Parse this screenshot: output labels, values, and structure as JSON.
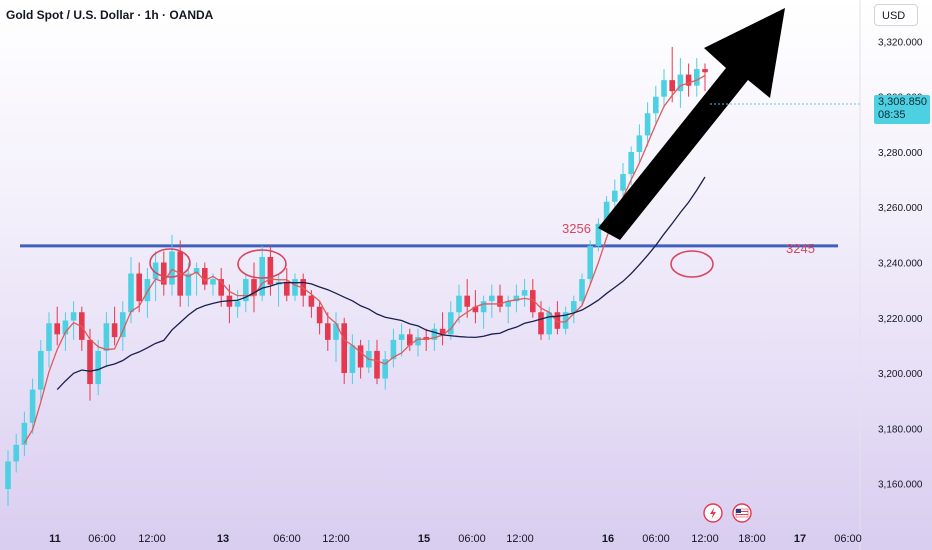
{
  "header": {
    "title": "Gold Spot / U.S. Dollar · 1h · OANDA",
    "currency": "USD"
  },
  "price_tag": {
    "price": "3,308.850",
    "countdown": "08:35"
  },
  "annotations": {
    "level_right": "3245",
    "level_left": "3256"
  },
  "colors": {
    "up": "#4dd0e1",
    "down": "#e53950",
    "level_line": "#3f5fbf",
    "ma_fast": "#e05a5a",
    "ma_slow": "#1a1f4d",
    "arrow": "#000000",
    "circle": "#d9455f"
  },
  "chart_data": {
    "type": "candlestick",
    "title": "Gold Spot / U.S. Dollar · 1h · OANDA",
    "currency": "USD",
    "ylim": [
      3145,
      3335
    ],
    "y_ticks": [
      3160,
      3180,
      3200,
      3220,
      3240,
      3260,
      3280,
      3300,
      3320
    ],
    "y_tick_labels": [
      "3,160.000",
      "3,180.000",
      "3,200.000",
      "3,220.000",
      "3,240.000",
      "3,260.000",
      "3,280.000",
      "3,300.000",
      "3,320.000"
    ],
    "x_tick_labels": [
      "11",
      "06:00",
      "12:00",
      "13",
      "06:00",
      "12:00",
      "15",
      "06:00",
      "12:00",
      "16",
      "06:00",
      "12:00",
      "18:00",
      "17",
      "06:00"
    ],
    "horizontal_level": 3246,
    "last_price": 3308.85,
    "candles": [
      [
        3158,
        3172,
        3152,
        3168
      ],
      [
        3168,
        3178,
        3164,
        3174
      ],
      [
        3174,
        3186,
        3170,
        3182
      ],
      [
        3182,
        3198,
        3178,
        3194
      ],
      [
        3194,
        3212,
        3190,
        3208
      ],
      [
        3208,
        3222,
        3202,
        3218
      ],
      [
        3218,
        3224,
        3210,
        3214
      ],
      [
        3214,
        3222,
        3208,
        3219
      ],
      [
        3219,
        3226,
        3212,
        3222
      ],
      [
        3222,
        3224,
        3208,
        3212
      ],
      [
        3212,
        3216,
        3190,
        3196
      ],
      [
        3196,
        3212,
        3192,
        3208
      ],
      [
        3208,
        3222,
        3202,
        3218
      ],
      [
        3218,
        3224,
        3210,
        3213
      ],
      [
        3213,
        3226,
        3208,
        3222
      ],
      [
        3222,
        3242,
        3218,
        3236
      ],
      [
        3236,
        3240,
        3222,
        3226
      ],
      [
        3226,
        3238,
        3220,
        3234
      ],
      [
        3234,
        3244,
        3226,
        3240
      ],
      [
        3240,
        3244,
        3228,
        3232
      ],
      [
        3232,
        3250,
        3228,
        3244
      ],
      [
        3244,
        3248,
        3224,
        3228
      ],
      [
        3228,
        3240,
        3224,
        3236
      ],
      [
        3236,
        3240,
        3228,
        3238
      ],
      [
        3238,
        3240,
        3230,
        3232
      ],
      [
        3232,
        3236,
        3228,
        3234
      ],
      [
        3234,
        3238,
        3224,
        3228
      ],
      [
        3228,
        3232,
        3218,
        3224
      ],
      [
        3224,
        3230,
        3220,
        3226
      ],
      [
        3226,
        3236,
        3222,
        3234
      ],
      [
        3234,
        3240,
        3222,
        3228
      ],
      [
        3228,
        3246,
        3226,
        3242
      ],
      [
        3242,
        3246,
        3228,
        3232
      ],
      [
        3232,
        3236,
        3224,
        3233
      ],
      [
        3233,
        3238,
        3226,
        3228
      ],
      [
        3228,
        3236,
        3226,
        3234
      ],
      [
        3234,
        3236,
        3224,
        3228
      ],
      [
        3228,
        3230,
        3220,
        3224
      ],
      [
        3224,
        3226,
        3214,
        3218
      ],
      [
        3218,
        3222,
        3208,
        3212
      ],
      [
        3212,
        3222,
        3204,
        3218
      ],
      [
        3218,
        3220,
        3196,
        3200
      ],
      [
        3200,
        3214,
        3196,
        3210
      ],
      [
        3210,
        3212,
        3198,
        3202
      ],
      [
        3202,
        3212,
        3200,
        3208
      ],
      [
        3208,
        3212,
        3196,
        3198
      ],
      [
        3198,
        3208,
        3194,
        3205
      ],
      [
        3205,
        3216,
        3202,
        3212
      ],
      [
        3212,
        3218,
        3206,
        3214
      ],
      [
        3214,
        3216,
        3208,
        3210
      ],
      [
        3210,
        3216,
        3206,
        3213
      ],
      [
        3213,
        3216,
        3208,
        3212
      ],
      [
        3212,
        3218,
        3208,
        3216
      ],
      [
        3216,
        3222,
        3210,
        3214
      ],
      [
        3214,
        3226,
        3212,
        3222
      ],
      [
        3222,
        3232,
        3218,
        3228
      ],
      [
        3228,
        3234,
        3220,
        3224
      ],
      [
        3224,
        3230,
        3218,
        3222
      ],
      [
        3222,
        3228,
        3216,
        3226
      ],
      [
        3226,
        3232,
        3220,
        3228
      ],
      [
        3228,
        3232,
        3222,
        3224
      ],
      [
        3224,
        3228,
        3218,
        3226
      ],
      [
        3226,
        3232,
        3222,
        3228
      ],
      [
        3228,
        3234,
        3224,
        3230
      ],
      [
        3230,
        3234,
        3220,
        3222
      ],
      [
        3222,
        3226,
        3212,
        3214
      ],
      [
        3214,
        3224,
        3212,
        3222
      ],
      [
        3222,
        3226,
        3214,
        3216
      ],
      [
        3216,
        3224,
        3214,
        3222
      ],
      [
        3222,
        3228,
        3218,
        3226
      ],
      [
        3226,
        3236,
        3224,
        3234
      ],
      [
        3234,
        3248,
        3232,
        3246
      ],
      [
        3246,
        3256,
        3244,
        3254
      ],
      [
        3254,
        3264,
        3252,
        3262
      ],
      [
        3262,
        3270,
        3258,
        3266
      ],
      [
        3266,
        3276,
        3262,
        3272
      ],
      [
        3272,
        3282,
        3268,
        3280
      ],
      [
        3280,
        3290,
        3276,
        3286
      ],
      [
        3286,
        3298,
        3282,
        3294
      ],
      [
        3294,
        3304,
        3290,
        3300
      ],
      [
        3300,
        3310,
        3296,
        3306
      ],
      [
        3306,
        3318,
        3298,
        3302
      ],
      [
        3302,
        3314,
        3296,
        3308
      ],
      [
        3308,
        3312,
        3300,
        3304
      ],
      [
        3304,
        3314,
        3300,
        3310
      ],
      [
        3310,
        3312,
        3302,
        3308.85
      ]
    ]
  }
}
